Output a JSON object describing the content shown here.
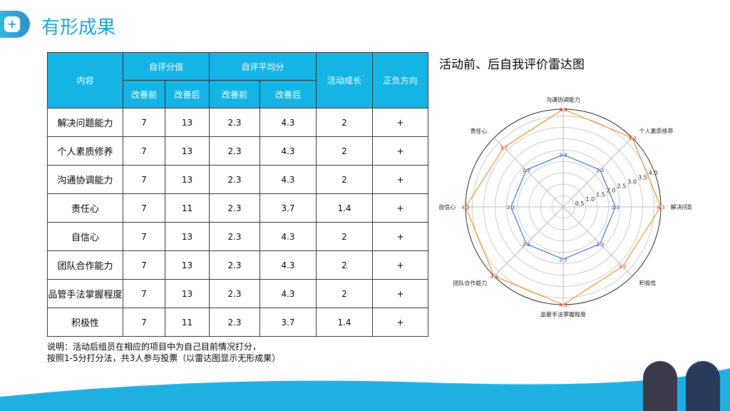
{
  "header": {
    "title": "有形成果",
    "icon": "hexagon-plus-icon"
  },
  "table": {
    "headers": {
      "content": "内容",
      "self_score": "自评分值",
      "self_avg": "自评平均分",
      "growth": "活动成长",
      "direction": "正负方向",
      "before": "改善前",
      "after": "改善后"
    },
    "rows": [
      [
        "解决问题能力",
        "7",
        "13",
        "2.3",
        "4.3",
        "2",
        "+"
      ],
      [
        "个人素质修养",
        "7",
        "13",
        "2.3",
        "4.3",
        "2",
        "+"
      ],
      [
        "沟通协调能力",
        "7",
        "13",
        "2.3",
        "4.3",
        "2",
        "+"
      ],
      [
        "责任心",
        "7",
        "11",
        "2.3",
        "3.7",
        "1.4",
        "+"
      ],
      [
        "自信心",
        "7",
        "13",
        "2.3",
        "4.3",
        "2",
        "+"
      ],
      [
        "团队合作能力",
        "7",
        "13",
        "2.3",
        "4.3",
        "2",
        "+"
      ],
      [
        "品管手法掌握程度",
        "7",
        "13",
        "2.3",
        "4.3",
        "2",
        "+"
      ],
      [
        "积极性",
        "7",
        "11",
        "2.3",
        "3.7",
        "1.4",
        "+"
      ]
    ]
  },
  "note": {
    "line1": "说明：活动后组员在相应的项目中为自己目前情况打分，",
    "line2": "按照1-5分打分法，共3人参与投票（以雷达图显示无形成果）"
  },
  "chart_data": {
    "type": "radar",
    "title": "活动前、后自我评价雷达图",
    "categories": [
      "解决问题能力",
      "个人素质修养",
      "沟通协调能力",
      "责任心",
      "自信心",
      "团队合作能力",
      "品管手法掌握程度",
      "积极性"
    ],
    "series": [
      {
        "values": [
          2.3,
          2.3,
          2.3,
          2.3,
          2.3,
          2.3,
          2.3,
          2.3
        ],
        "color": "#3a72c0",
        "label_color": "#3a3ad8"
      },
      {
        "values": [
          4.3,
          4.3,
          4.3,
          3.7,
          4.3,
          4.3,
          4.3,
          3.7
        ],
        "color": "#f0902a",
        "label_color": "#e02020"
      }
    ],
    "rticks": [
      "0.5",
      "1.0",
      "1.5",
      "2.0",
      "2.5",
      "3.0",
      "3.5",
      "4.0"
    ],
    "rmax": 4.3,
    "grid": true
  }
}
